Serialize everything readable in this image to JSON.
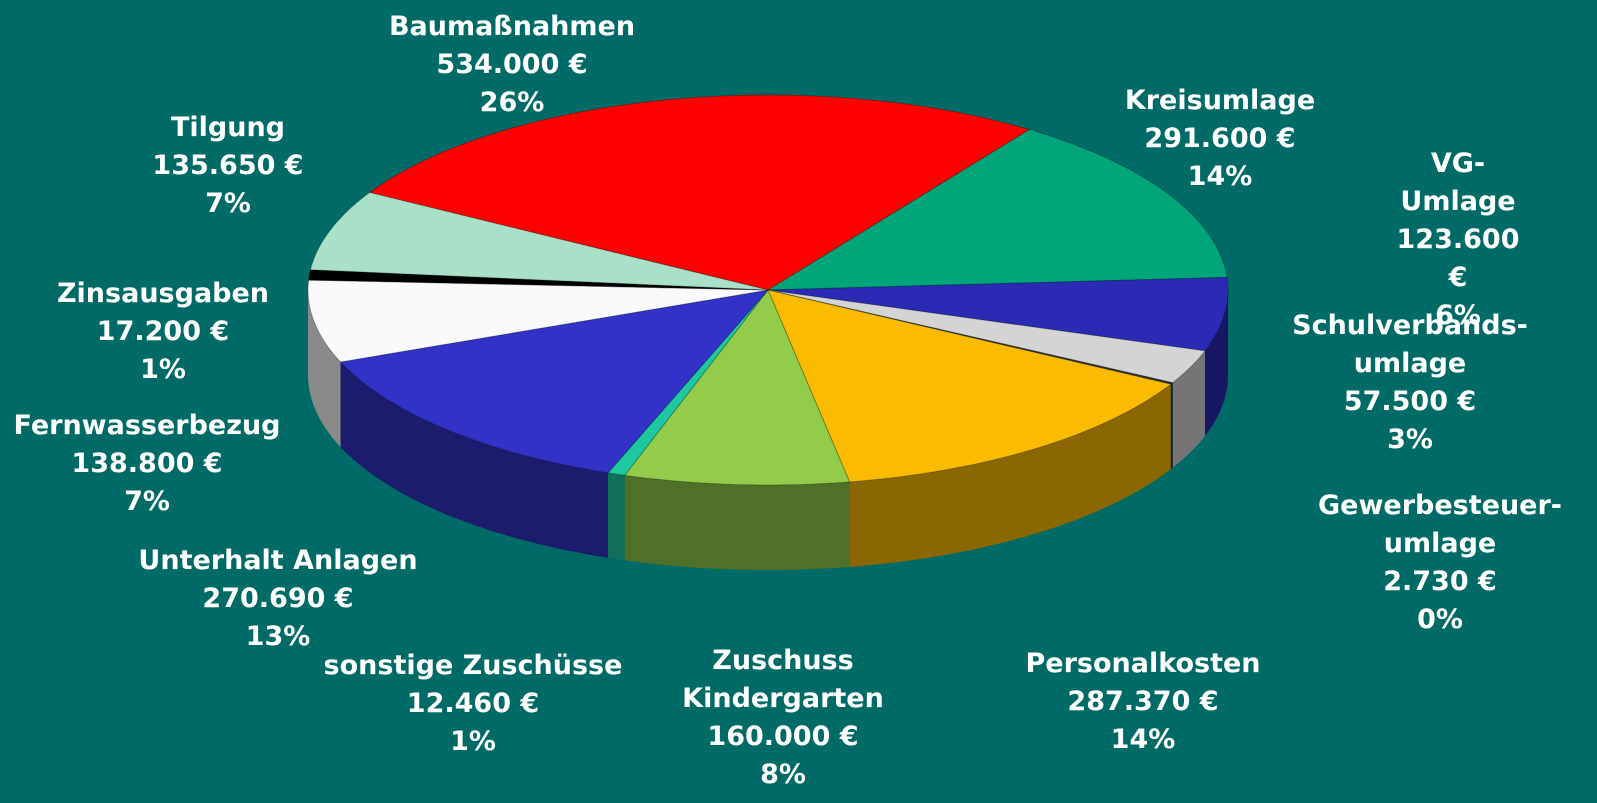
{
  "chart_data": {
    "type": "pie3d",
    "categories": [
      "Baumaßnahmen",
      "Kreisumlage",
      "VG-Umlage",
      "Schulverbands-\numlage",
      "Gewerbesteuer-\numlage",
      "Personalkosten",
      "Zuschuss\nKindergarten",
      "sonstige Zuschüsse",
      "Unterhalt Anlagen",
      "Fernwasserbezug",
      "Zinsausgaben",
      "Tilgung"
    ],
    "values": [
      534000,
      291600,
      123600,
      57500,
      2730,
      287370,
      160000,
      12460,
      270690,
      138800,
      17200,
      135650
    ],
    "value_labels": [
      "534.000 €",
      "291.600 €",
      "123.600 €",
      "57.500 €",
      "2.730 €",
      "287.370 €",
      "160.000 €",
      "12.460 €",
      "270.690 €",
      "138.800 €",
      "17.200 €",
      "135.650 €"
    ],
    "percentage_labels": [
      "26%",
      "14%",
      "6%",
      "3%",
      "0%",
      "14%",
      "8%",
      "1%",
      "13%",
      "7%",
      "1%",
      "7%"
    ],
    "colors": [
      "#ff0000",
      "#00a57a",
      "#2a2ab4",
      "#d4d4d4",
      "#333333",
      "#fbbb00",
      "#92cc4a",
      "#1ec8a0",
      "#3232c8",
      "#fafafa",
      "#000000",
      "#a8e0c8"
    ]
  }
}
